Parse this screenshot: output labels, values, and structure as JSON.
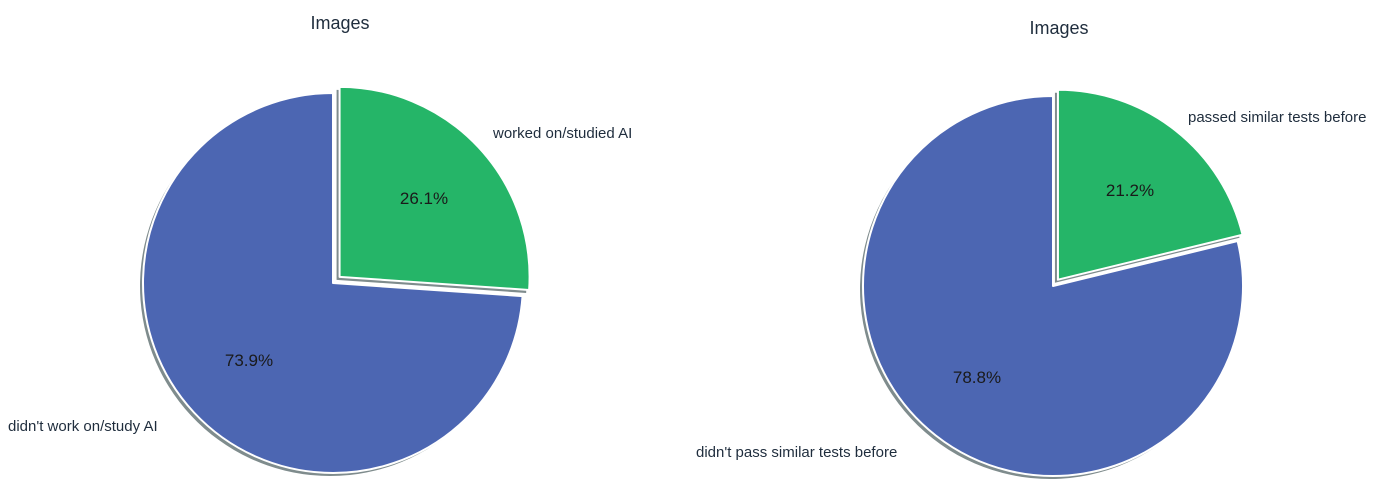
{
  "colors": {
    "ai": "#25b568",
    "other": "#4c66b2",
    "shadow": "#7f8c8d"
  },
  "chart_data": [
    {
      "type": "pie",
      "title": "Images",
      "slices": [
        {
          "label": "worked on/studied AI",
          "value": 26.1,
          "pct_label": "26.1%",
          "color": "#25b568",
          "exploded": true
        },
        {
          "label": "didn't work on/study AI",
          "value": 73.9,
          "pct_label": "73.9%",
          "color": "#4c66b2",
          "exploded": false
        }
      ]
    },
    {
      "type": "pie",
      "title": "Images",
      "slices": [
        {
          "label": "passed similar tests before",
          "value": 21.2,
          "pct_label": "21.2%",
          "color": "#25b568",
          "exploded": true
        },
        {
          "label": "didn't pass similar tests before",
          "value": 78.8,
          "pct_label": "78.8%",
          "color": "#4c66b2",
          "exploded": false
        }
      ]
    }
  ]
}
